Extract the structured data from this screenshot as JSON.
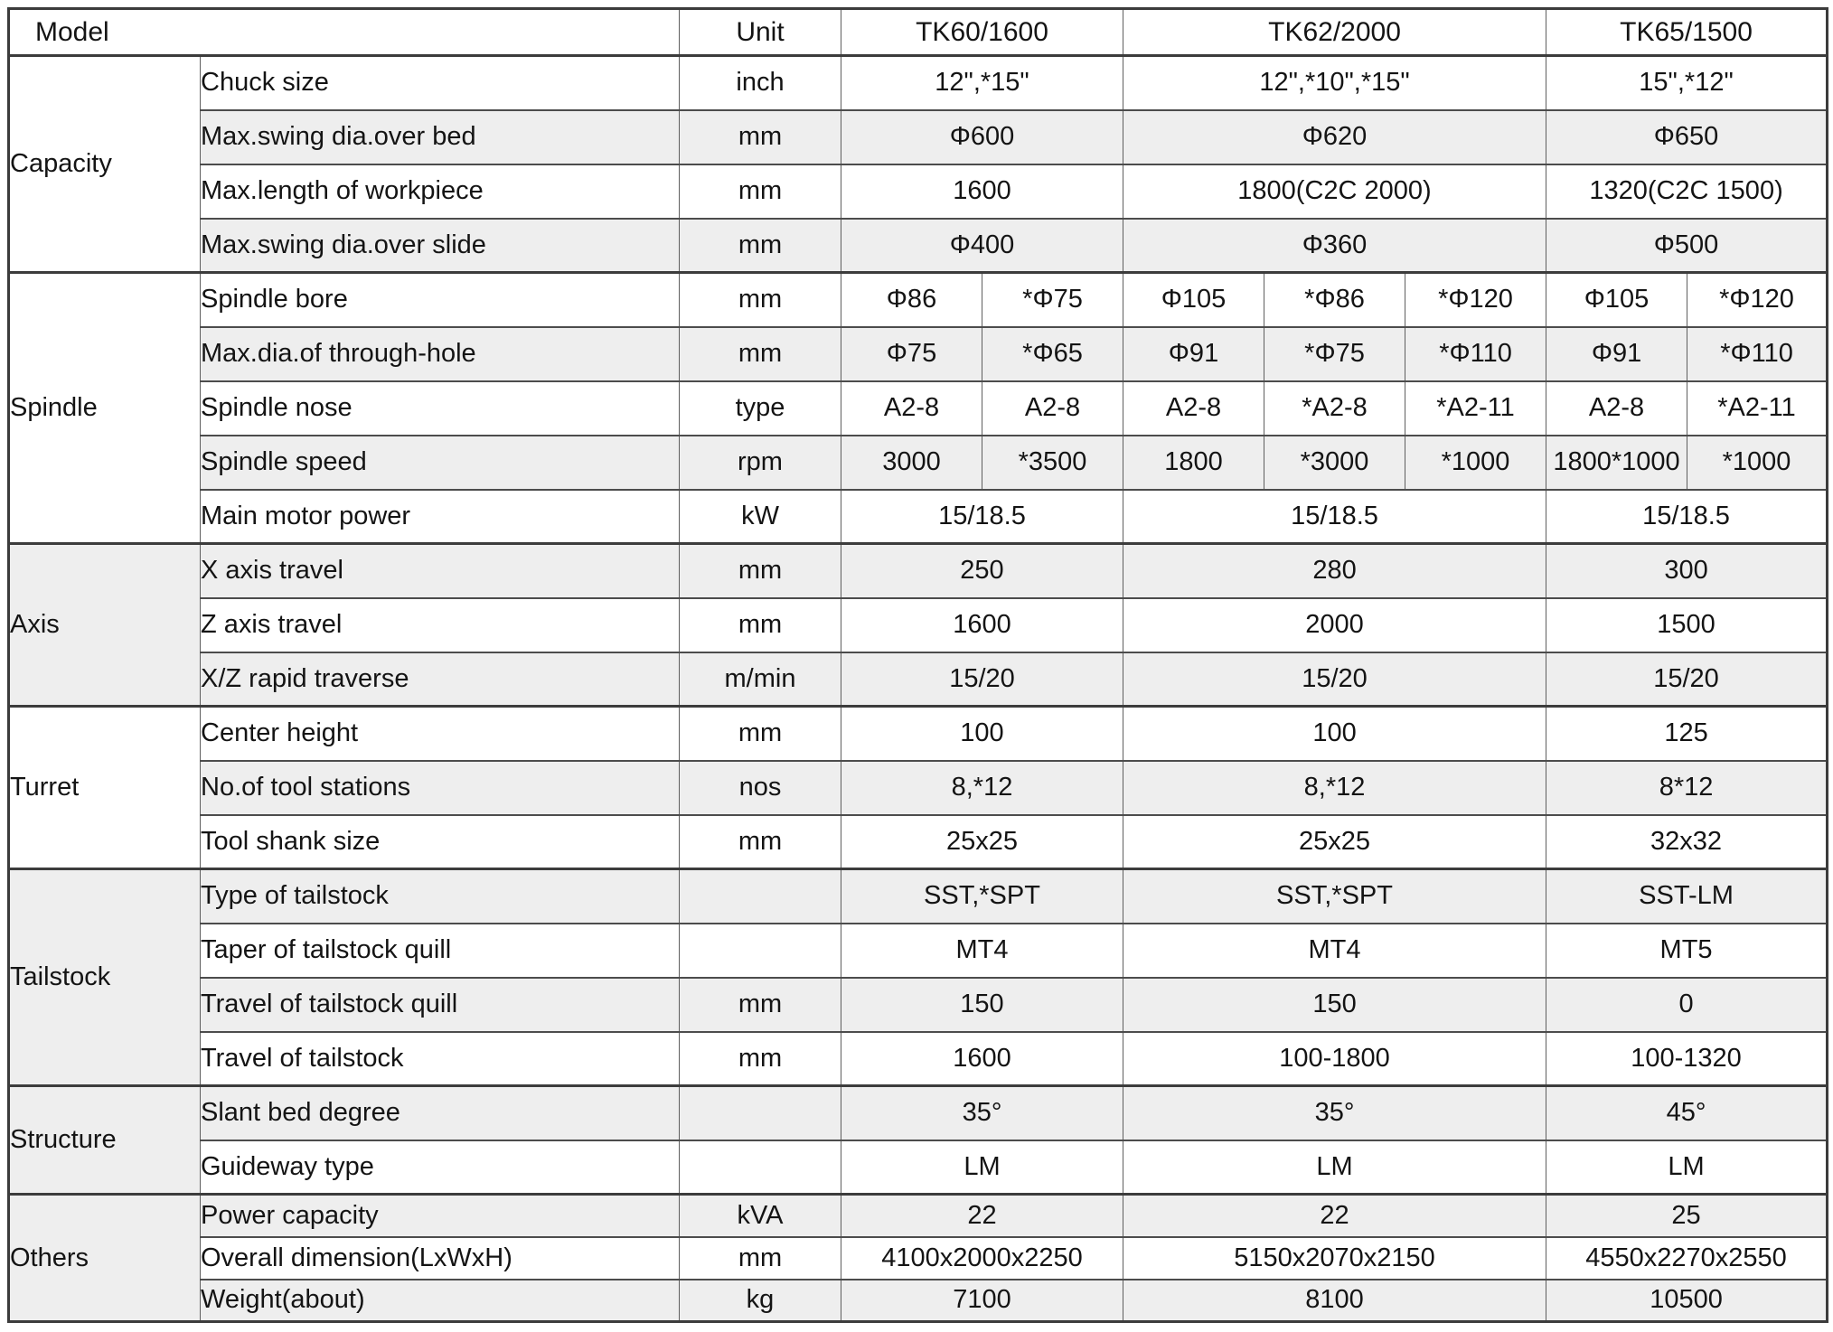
{
  "colors": {
    "header_bg": "#d9d9d9",
    "stripe_bg": "#eeeeee",
    "border_dark": "#3c3c3c",
    "text": "#141414"
  },
  "header": {
    "model_label": "Model",
    "unit_label": "Unit",
    "models": [
      "TK60/1600",
      "TK62/2000",
      "TK65/1500"
    ]
  },
  "sections": [
    {
      "name": "Capacity",
      "rows": [
        {
          "param": "Chuck size",
          "unit": "inch",
          "values": [
            "12\",*15\"",
            "12\",*10\",*15\"",
            "15\",*12\""
          ]
        },
        {
          "param": "Max.swing dia.over bed",
          "unit": "mm",
          "values": [
            "Φ600",
            "Φ620",
            "Φ650"
          ]
        },
        {
          "param": "Max.length of workpiece",
          "unit": "mm",
          "values": [
            "1600",
            "1800(C2C 2000)",
            "1320(C2C 1500)"
          ]
        },
        {
          "param": "Max.swing dia.over slide",
          "unit": "mm",
          "values": [
            "Φ400",
            "Φ360",
            "Φ500"
          ]
        }
      ]
    },
    {
      "name": "Spindle",
      "rows": [
        {
          "param": "Spindle bore",
          "unit": "mm",
          "cells": [
            [
              "Φ86",
              "*Φ75"
            ],
            [
              "Φ105",
              "*Φ86",
              "*Φ120"
            ],
            [
              "Φ105",
              "*Φ120"
            ]
          ]
        },
        {
          "param": "Max.dia.of through-hole",
          "unit": "mm",
          "cells": [
            [
              "Φ75",
              "*Φ65"
            ],
            [
              "Φ91",
              "*Φ75",
              "*Φ110"
            ],
            [
              "Φ91",
              "*Φ110"
            ]
          ]
        },
        {
          "param": "Spindle nose",
          "unit": "type",
          "cells": [
            [
              "A2-8",
              "A2-8"
            ],
            [
              "A2-8",
              "*A2-8",
              "*A2-11"
            ],
            [
              "A2-8",
              "*A2-11"
            ]
          ]
        },
        {
          "param": "Spindle speed",
          "unit": "rpm",
          "cells": [
            [
              "3000",
              "*3500"
            ],
            [
              "1800",
              "*3000",
              "*1000"
            ],
            [
              "1800*1000",
              "*1000"
            ]
          ]
        },
        {
          "param": "Main motor power",
          "unit": "kW",
          "values": [
            "15/18.5",
            "15/18.5",
            "15/18.5"
          ]
        }
      ]
    },
    {
      "name": "Axis",
      "rows": [
        {
          "param": "X axis travel",
          "unit": "mm",
          "values": [
            "250",
            "280",
            "300"
          ]
        },
        {
          "param": "Z axis travel",
          "unit": "mm",
          "values": [
            "1600",
            "2000",
            "1500"
          ]
        },
        {
          "param": "X/Z rapid traverse",
          "unit": "m/min",
          "values": [
            "15/20",
            "15/20",
            "15/20"
          ]
        }
      ]
    },
    {
      "name": "Turret",
      "rows": [
        {
          "param": "Center height",
          "unit": "mm",
          "values": [
            "100",
            "100",
            "125"
          ]
        },
        {
          "param": "No.of tool stations",
          "unit": "nos",
          "values": [
            "8,*12",
            "8,*12",
            "8*12"
          ]
        },
        {
          "param": "Tool shank size",
          "unit": "mm",
          "values": [
            "25x25",
            "25x25",
            "32x32"
          ]
        }
      ]
    },
    {
      "name": "Tailstock",
      "rows": [
        {
          "param": "Type of tailstock",
          "unit": "",
          "values": [
            "SST,*SPT",
            "SST,*SPT",
            "SST-LM"
          ]
        },
        {
          "param": "Taper of tailstock quill",
          "unit": "",
          "values": [
            "MT4",
            "MT4",
            "MT5"
          ]
        },
        {
          "param": "Travel of tailstock quill",
          "unit": "mm",
          "values": [
            "150",
            "150",
            "0"
          ]
        },
        {
          "param": "Travel of tailstock",
          "unit": "mm",
          "values": [
            "1600",
            "100-1800",
            "100-1320"
          ]
        }
      ]
    },
    {
      "name": "Structure",
      "rows": [
        {
          "param": "Slant bed degree",
          "unit": "",
          "values": [
            "35°",
            "35°",
            "45°"
          ]
        },
        {
          "param": "Guideway type",
          "unit": "",
          "values": [
            "LM",
            "LM",
            "LM"
          ]
        }
      ]
    },
    {
      "name": "Others",
      "rows": [
        {
          "param": "Power capacity",
          "unit": "kVA",
          "values": [
            "22",
            "22",
            "25"
          ]
        },
        {
          "param": "Overall dimension(LxWxH)",
          "unit": "mm",
          "values": [
            "4100x2000x2250",
            "5150x2070x2150",
            "4550x2270x2550"
          ]
        },
        {
          "param": "Weight(about)",
          "unit": "kg",
          "values": [
            "7100",
            "8100",
            "10500"
          ]
        }
      ]
    }
  ]
}
